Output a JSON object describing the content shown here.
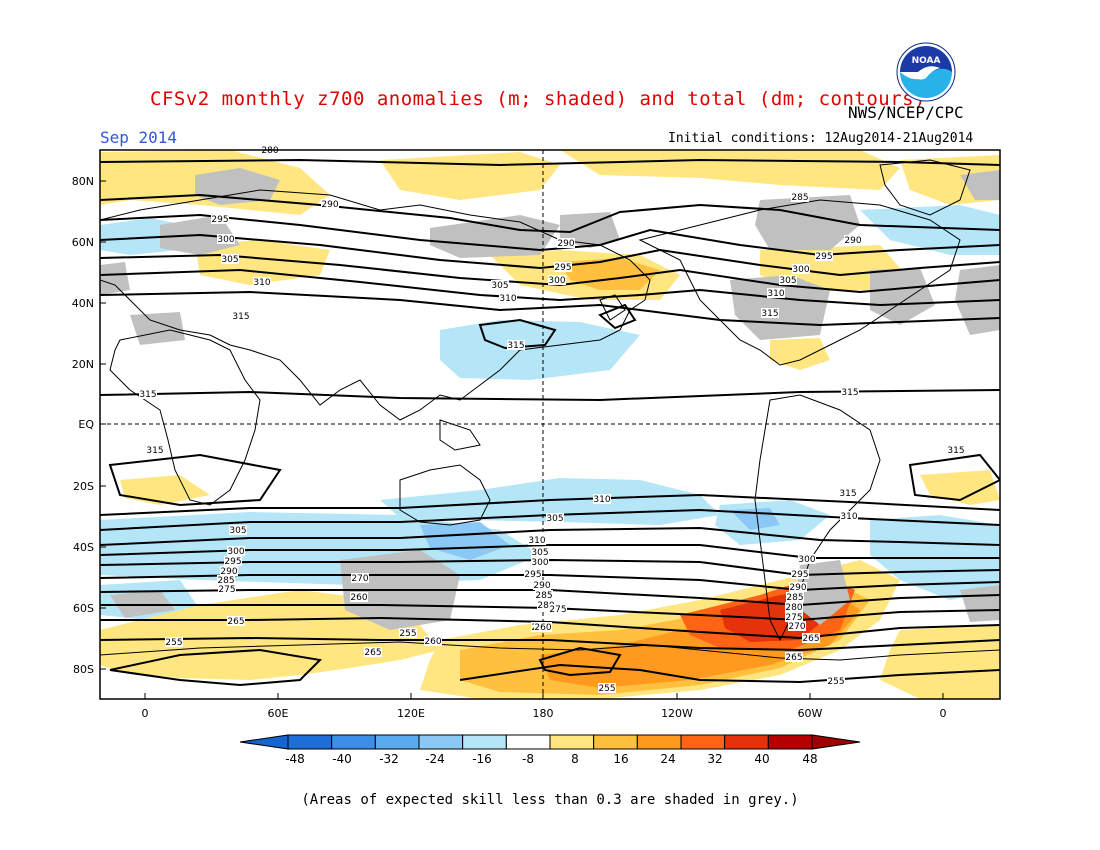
{
  "header": {
    "title": "CFSv2 monthly z700 anomalies (m; shaded) and total (dm; contours)",
    "title_color": "#e00000",
    "agency": "NWS/NCEP/CPC",
    "month": "Sep 2014",
    "month_color": "#3355dd",
    "initial_conditions": "Initial conditions: 12Aug2014-21Aug2014",
    "logo_text": "NOAA"
  },
  "axes": {
    "lat_labels": [
      "80N",
      "60N",
      "40N",
      "20N",
      "EQ",
      "20S",
      "40S",
      "60S",
      "80S"
    ],
    "lon_labels": [
      "0",
      "60E",
      "120E",
      "180",
      "120W",
      "60W",
      "0"
    ]
  },
  "colorbar": {
    "labels": [
      "-48",
      "-40",
      "-32",
      "-24",
      "-16",
      "-8",
      "8",
      "16",
      "24",
      "32",
      "40",
      "48"
    ],
    "colors": [
      "#1e6ed8",
      "#3c8ee6",
      "#5aaaf0",
      "#8cc8f5",
      "#b4e6f8",
      "#ffffff",
      "#ffe680",
      "#ffc040",
      "#ff9a1e",
      "#ff6414",
      "#e6320a",
      "#b40000"
    ],
    "left_arrow_color": "#1464d2",
    "right_arrow_color": "#a00000"
  },
  "contour_labels": [
    {
      "text": "280"
    },
    {
      "text": "290"
    },
    {
      "text": "285"
    },
    {
      "text": "295"
    },
    {
      "text": "300"
    },
    {
      "text": "305"
    },
    {
      "text": "310"
    },
    {
      "text": "315"
    },
    {
      "text": "290"
    },
    {
      "text": "295"
    },
    {
      "text": "300"
    },
    {
      "text": "305"
    },
    {
      "text": "310"
    },
    {
      "text": "315"
    },
    {
      "text": "290"
    },
    {
      "text": "295"
    },
    {
      "text": "300"
    },
    {
      "text": "305"
    },
    {
      "text": "310"
    },
    {
      "text": "315"
    },
    {
      "text": "315"
    },
    {
      "text": "315"
    },
    {
      "text": "315"
    },
    {
      "text": "315"
    },
    {
      "text": "310"
    },
    {
      "text": "305"
    },
    {
      "text": "310"
    },
    {
      "text": "305"
    },
    {
      "text": "300"
    },
    {
      "text": "295"
    },
    {
      "text": "290"
    },
    {
      "text": "285"
    },
    {
      "text": "275"
    },
    {
      "text": "265"
    },
    {
      "text": "270"
    },
    {
      "text": "260"
    },
    {
      "text": "255"
    },
    {
      "text": "255"
    },
    {
      "text": "265"
    },
    {
      "text": "260"
    },
    {
      "text": "255"
    },
    {
      "text": "255"
    },
    {
      "text": "300"
    },
    {
      "text": "295"
    },
    {
      "text": "290"
    },
    {
      "text": "285"
    },
    {
      "text": "280"
    },
    {
      "text": "275"
    },
    {
      "text": "265"
    },
    {
      "text": "310"
    },
    {
      "text": "305"
    },
    {
      "text": "300"
    },
    {
      "text": "295"
    },
    {
      "text": "290"
    },
    {
      "text": "285"
    },
    {
      "text": "280"
    },
    {
      "text": "275"
    },
    {
      "text": "270"
    },
    {
      "text": "265"
    },
    {
      "text": "260"
    },
    {
      "text": "255"
    },
    {
      "text": "315"
    }
  ],
  "caption": "(Areas of expected skill less than 0.3 are shaded in grey.)"
}
